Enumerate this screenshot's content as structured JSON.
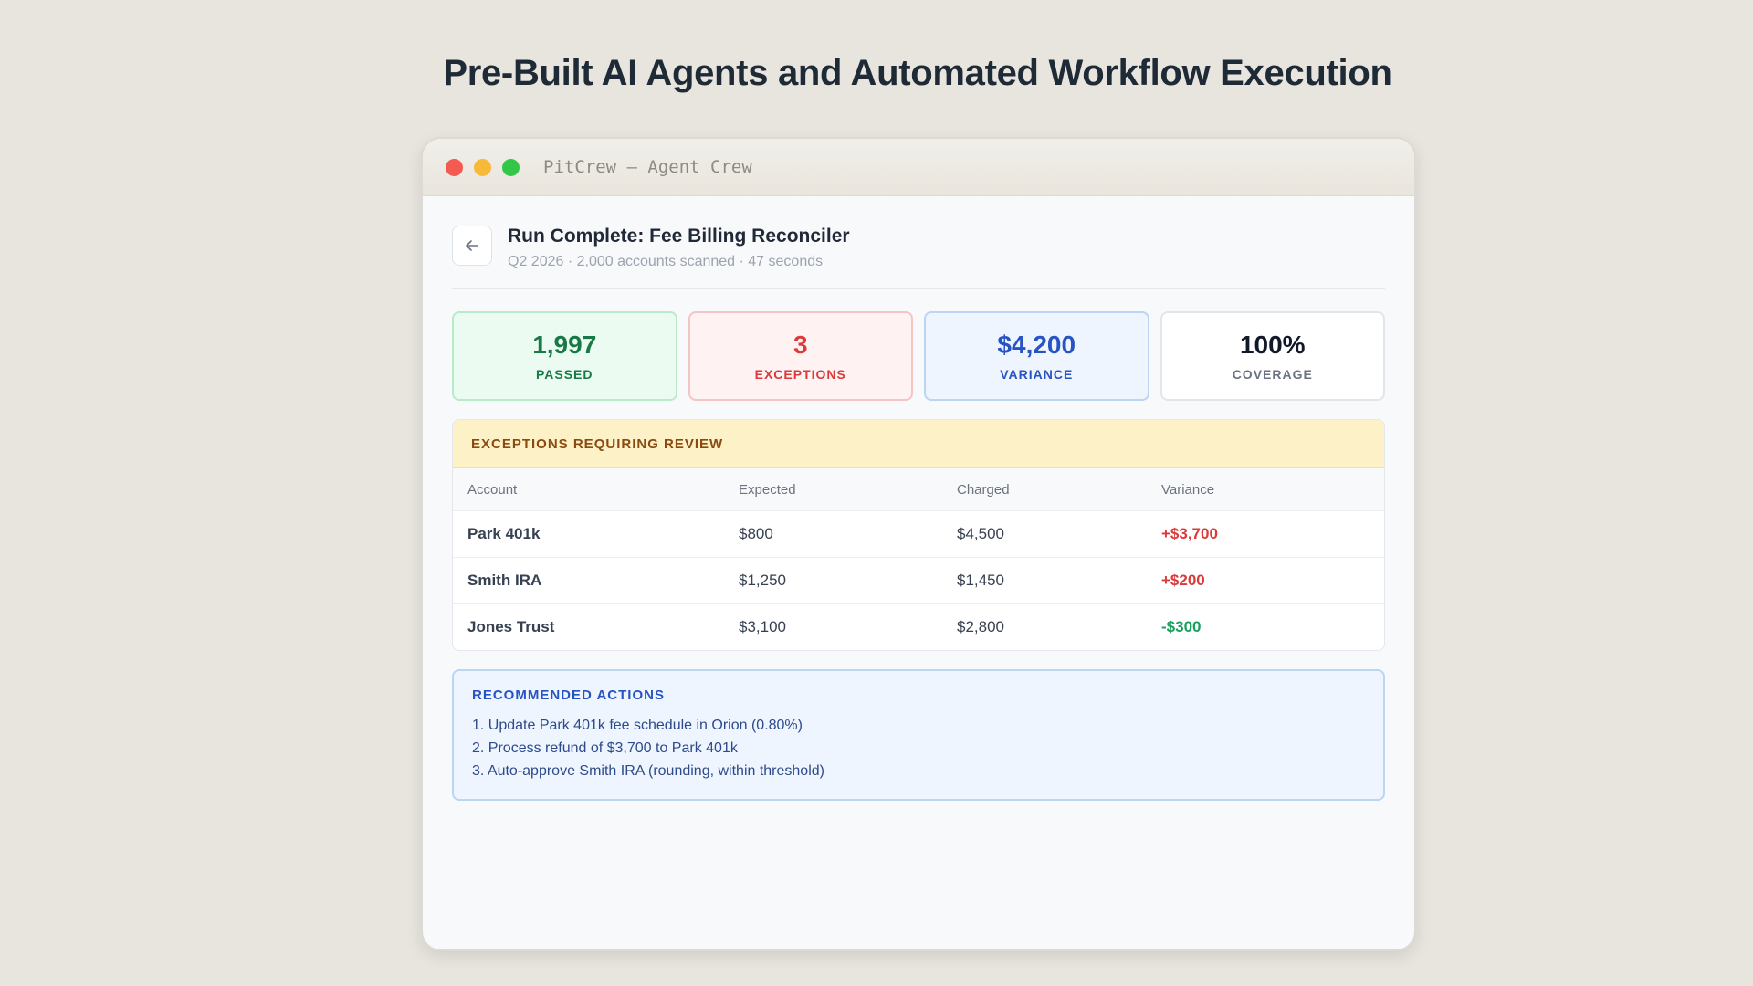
{
  "page": {
    "title": "Pre-Built AI Agents and Automated Workflow Execution"
  },
  "window": {
    "title": "PitCrew — Agent Crew"
  },
  "run": {
    "back_icon": "arrow-left-icon",
    "title": "Run Complete: Fee Billing Reconciler",
    "subtitle": "Q2 2026 · 2,000 accounts scanned · 47 seconds"
  },
  "stats": {
    "passed": {
      "value": "1,997",
      "label": "PASSED",
      "color": "#177a46"
    },
    "exceptions": {
      "value": "3",
      "label": "EXCEPTIONS",
      "color": "#dc3a3a"
    },
    "variance": {
      "value": "$4,200",
      "label": "VARIANCE",
      "color": "#2753c4"
    },
    "coverage": {
      "value": "100%",
      "label": "COVERAGE",
      "color": "#111827"
    }
  },
  "exceptions": {
    "header": "EXCEPTIONS REQUIRING REVIEW",
    "columns": [
      "Account",
      "Expected",
      "Charged",
      "Variance"
    ],
    "rows": [
      {
        "account": "Park 401k",
        "expected": "$800",
        "charged": "$4,500",
        "variance": "+$3,700"
      },
      {
        "account": "Smith IRA",
        "expected": "$1,250",
        "charged": "$1,450",
        "variance": "+$200"
      },
      {
        "account": "Jones Trust",
        "expected": "$3,100",
        "charged": "$2,800",
        "variance": "-$300"
      }
    ]
  },
  "actions": {
    "header": "RECOMMENDED ACTIONS",
    "items": [
      "1. Update Park 401k fee schedule in Orion (0.80%)",
      "2. Process refund of $3,700 to Park 401k",
      "3. Auto-approve Smith IRA (rounding, within threshold)"
    ]
  }
}
